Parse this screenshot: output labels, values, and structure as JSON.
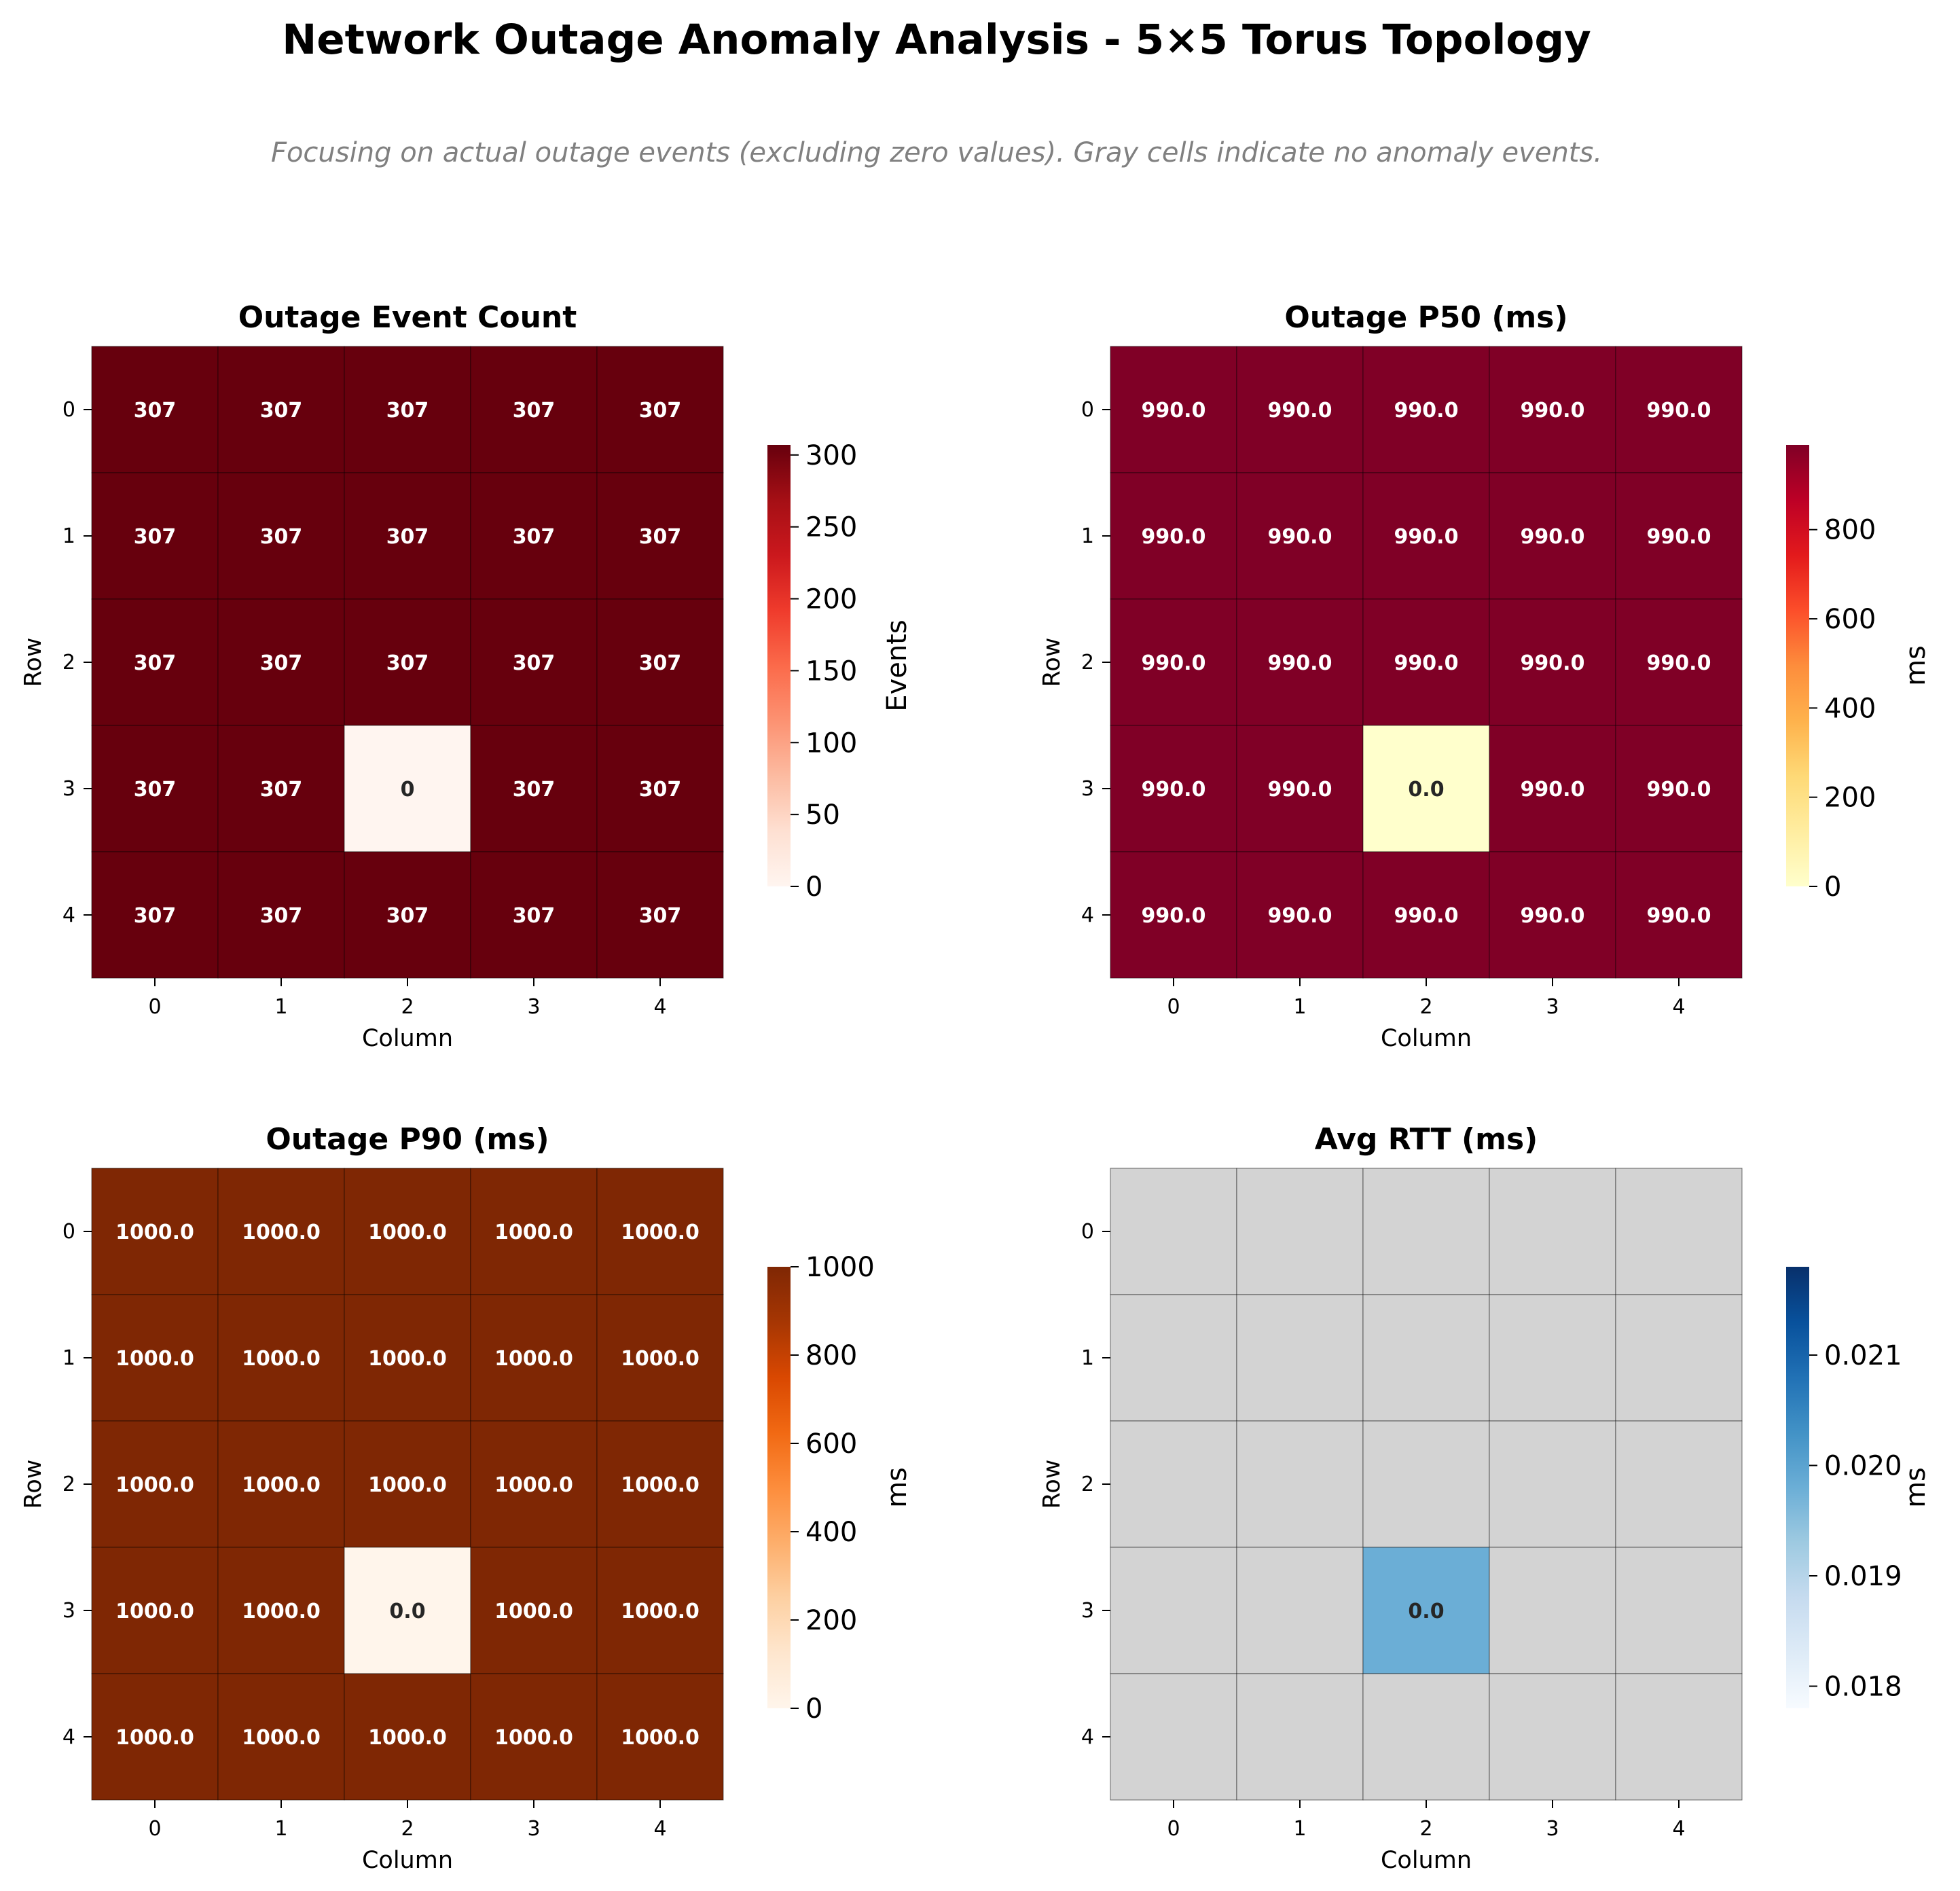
{
  "figure": {
    "title": "Network Outage Anomaly Analysis - 5×5 Torus Topology",
    "subtitle": "Focusing on actual outage events (excluding zero values). Gray cells indicate no anomaly events."
  },
  "chart_data": [
    {
      "type": "heatmap",
      "title": "Outage Event Count",
      "xlabel": "Column",
      "ylabel": "Row",
      "x_ticks": [
        "0",
        "1",
        "2",
        "3",
        "4"
      ],
      "y_ticks": [
        "0",
        "1",
        "2",
        "3",
        "4"
      ],
      "values": [
        [
          307,
          307,
          307,
          307,
          307
        ],
        [
          307,
          307,
          307,
          307,
          307
        ],
        [
          307,
          307,
          307,
          307,
          307
        ],
        [
          307,
          307,
          0,
          307,
          307
        ],
        [
          307,
          307,
          307,
          307,
          307
        ]
      ],
      "labels": [
        [
          "307",
          "307",
          "307",
          "307",
          "307"
        ],
        [
          "307",
          "307",
          "307",
          "307",
          "307"
        ],
        [
          "307",
          "307",
          "307",
          "307",
          "307"
        ],
        [
          "307",
          "307",
          "0",
          "307",
          "307"
        ],
        [
          "307",
          "307",
          "307",
          "307",
          "307"
        ]
      ],
      "colormap": "Reds",
      "vmin": 0,
      "vmax": 307,
      "colorbar": {
        "label": "Events",
        "ticks": [
          0,
          50,
          100,
          150,
          200,
          250,
          300
        ],
        "tick_labels": [
          "0",
          "50",
          "100",
          "150",
          "200",
          "250",
          "300"
        ]
      }
    },
    {
      "type": "heatmap",
      "title": "Outage P50 (ms)",
      "xlabel": "Column",
      "ylabel": "Row",
      "x_ticks": [
        "0",
        "1",
        "2",
        "3",
        "4"
      ],
      "y_ticks": [
        "0",
        "1",
        "2",
        "3",
        "4"
      ],
      "values": [
        [
          990.0,
          990.0,
          990.0,
          990.0,
          990.0
        ],
        [
          990.0,
          990.0,
          990.0,
          990.0,
          990.0
        ],
        [
          990.0,
          990.0,
          990.0,
          990.0,
          990.0
        ],
        [
          990.0,
          990.0,
          0.0,
          990.0,
          990.0
        ],
        [
          990.0,
          990.0,
          990.0,
          990.0,
          990.0
        ]
      ],
      "labels": [
        [
          "990.0",
          "990.0",
          "990.0",
          "990.0",
          "990.0"
        ],
        [
          "990.0",
          "990.0",
          "990.0",
          "990.0",
          "990.0"
        ],
        [
          "990.0",
          "990.0",
          "990.0",
          "990.0",
          "990.0"
        ],
        [
          "990.0",
          "990.0",
          "0.0",
          "990.0",
          "990.0"
        ],
        [
          "990.0",
          "990.0",
          "990.0",
          "990.0",
          "990.0"
        ]
      ],
      "colormap": "YlOrRd",
      "vmin": 0,
      "vmax": 990,
      "colorbar": {
        "label": "ms",
        "ticks": [
          0,
          200,
          400,
          600,
          800
        ],
        "tick_labels": [
          "0",
          "200",
          "400",
          "600",
          "800"
        ]
      }
    },
    {
      "type": "heatmap",
      "title": "Outage P90 (ms)",
      "xlabel": "Column",
      "ylabel": "Row",
      "x_ticks": [
        "0",
        "1",
        "2",
        "3",
        "4"
      ],
      "y_ticks": [
        "0",
        "1",
        "2",
        "3",
        "4"
      ],
      "values": [
        [
          1000.0,
          1000.0,
          1000.0,
          1000.0,
          1000.0
        ],
        [
          1000.0,
          1000.0,
          1000.0,
          1000.0,
          1000.0
        ],
        [
          1000.0,
          1000.0,
          1000.0,
          1000.0,
          1000.0
        ],
        [
          1000.0,
          1000.0,
          0.0,
          1000.0,
          1000.0
        ],
        [
          1000.0,
          1000.0,
          1000.0,
          1000.0,
          1000.0
        ]
      ],
      "labels": [
        [
          "1000.0",
          "1000.0",
          "1000.0",
          "1000.0",
          "1000.0"
        ],
        [
          "1000.0",
          "1000.0",
          "1000.0",
          "1000.0",
          "1000.0"
        ],
        [
          "1000.0",
          "1000.0",
          "1000.0",
          "1000.0",
          "1000.0"
        ],
        [
          "1000.0",
          "1000.0",
          "0.0",
          "1000.0",
          "1000.0"
        ],
        [
          "1000.0",
          "1000.0",
          "1000.0",
          "1000.0",
          "1000.0"
        ]
      ],
      "colormap": "Oranges",
      "vmin": 0,
      "vmax": 1000,
      "colorbar": {
        "label": "ms",
        "ticks": [
          0,
          200,
          400,
          600,
          800,
          1000
        ],
        "tick_labels": [
          "0",
          "200",
          "400",
          "600",
          "800",
          "1000"
        ]
      }
    },
    {
      "type": "heatmap",
      "title": "Avg RTT (ms)",
      "xlabel": "Column",
      "ylabel": "Row",
      "x_ticks": [
        "0",
        "1",
        "2",
        "3",
        "4"
      ],
      "y_ticks": [
        "0",
        "1",
        "2",
        "3",
        "4"
      ],
      "values": [
        [
          null,
          null,
          null,
          null,
          null
        ],
        [
          null,
          null,
          null,
          null,
          null
        ],
        [
          null,
          null,
          null,
          null,
          null
        ],
        [
          null,
          null,
          0.0,
          null,
          null
        ],
        [
          null,
          null,
          null,
          null,
          null
        ]
      ],
      "labels": [
        [
          "",
          "",
          "",
          "",
          ""
        ],
        [
          "",
          "",
          "",
          "",
          ""
        ],
        [
          "",
          "",
          "",
          "",
          ""
        ],
        [
          "",
          "",
          "0.0",
          "",
          ""
        ],
        [
          "",
          "",
          "",
          "",
          ""
        ]
      ],
      "cell_colors": [
        [
          null,
          null,
          null,
          null,
          null
        ],
        [
          null,
          null,
          null,
          null,
          null
        ],
        [
          null,
          null,
          null,
          null,
          null
        ],
        [
          null,
          null,
          "#6baed6",
          null,
          null
        ],
        [
          null,
          null,
          null,
          null,
          null
        ]
      ],
      "colormap": "Blues",
      "vmin": 0.0178,
      "vmax": 0.0218,
      "colorbar": {
        "label": "ms",
        "ticks": [
          0.018,
          0.019,
          0.02,
          0.021
        ],
        "tick_labels": [
          "0.018",
          "0.019",
          "0.020",
          "0.021"
        ]
      },
      "missing_color": "#d3d3d3"
    }
  ]
}
